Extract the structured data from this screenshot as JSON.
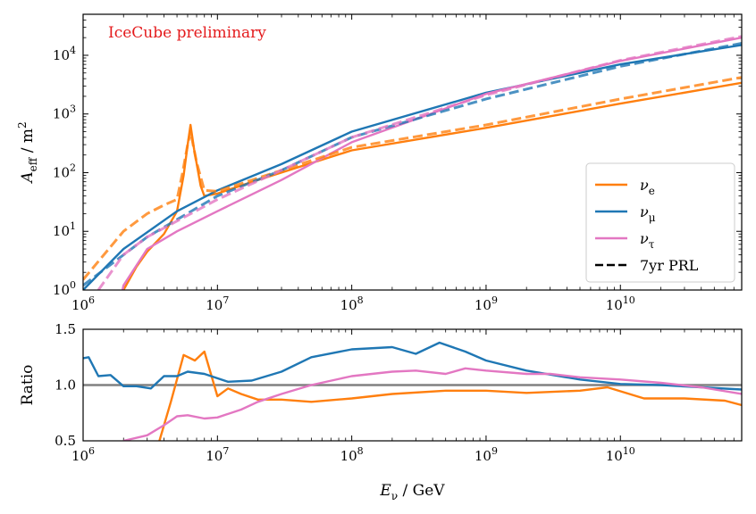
{
  "chart_data": [
    {
      "type": "line",
      "xscale": "log",
      "yscale": "log",
      "xlim": [
        1000000,
        80000000000
      ],
      "ylim": [
        1,
        50000
      ],
      "xticks": [
        "10^6",
        "10^7",
        "10^8",
        "10^9",
        "10^10"
      ],
      "yticks": [
        "10^0",
        "10^1",
        "10^2",
        "10^3",
        "10^4"
      ],
      "ylabel": "A_eff / m^2",
      "annotation": "IceCube preliminary",
      "legend": {
        "placement": "lower-right",
        "entries": [
          {
            "label": "ν_e",
            "color": "#ff7f0e",
            "style": "solid"
          },
          {
            "label": "ν_μ",
            "color": "#1f77b4",
            "style": "solid"
          },
          {
            "label": "ν_τ",
            "color": "#e377c2",
            "style": "solid"
          },
          {
            "label": "7yr PRL",
            "color": "#000000",
            "style": "dashed"
          }
        ]
      },
      "series": [
        {
          "name": "ν_e",
          "color": "#ff7f0e",
          "dash": false,
          "x": [
            1900000,
            2000000,
            2500000,
            3000000,
            4000000,
            5000000,
            5600000,
            6000000,
            6300000,
            6700000,
            7500000,
            8000000,
            10000000,
            20000000,
            100000000,
            1000000000,
            10000000000,
            80000000000
          ],
          "y": [
            0.8,
            1,
            2.5,
            4.5,
            9,
            22,
            90,
            300,
            650,
            250,
            60,
            40,
            44,
            75,
            240,
            580,
            1500,
            3400
          ]
        },
        {
          "name": "ν_μ",
          "color": "#1f77b4",
          "dash": false,
          "x": [
            1000000,
            2000000,
            5000000,
            10000000,
            30000000,
            100000000,
            1000000000,
            10000000000,
            80000000000
          ],
          "y": [
            1,
            5,
            22,
            50,
            140,
            500,
            2300,
            7000,
            15000
          ]
        },
        {
          "name": "ν_τ",
          "color": "#e377c2",
          "dash": false,
          "x": [
            1900000,
            2000000,
            3000000,
            5000000,
            10000000,
            30000000,
            100000000,
            1000000000,
            10000000000,
            80000000000
          ],
          "y": [
            0.7,
            1.2,
            5,
            10,
            22,
            75,
            330,
            2200,
            8000,
            20000
          ]
        },
        {
          "name": "ν_e 7yr PRL",
          "color": "#ff7f0e",
          "dash": true,
          "x": [
            1000000,
            2000000,
            3000000,
            4000000,
            5000000,
            5500000,
            6000000,
            6300000,
            7000000,
            8000000,
            10000000,
            100000000,
            1000000000,
            10000000000,
            80000000000
          ],
          "y": [
            1.5,
            10,
            20,
            28,
            35,
            100,
            300,
            500,
            150,
            50,
            48,
            270,
            650,
            1800,
            4200
          ]
        },
        {
          "name": "ν_μ 7yr PRL",
          "color": "#1f77b4",
          "dash": true,
          "x": [
            1000000,
            3000000,
            10000000,
            30000000,
            100000000,
            1000000000,
            10000000000,
            80000000000
          ],
          "y": [
            1.2,
            8,
            40,
            110,
            400,
            1800,
            6500,
            16000
          ]
        },
        {
          "name": "ν_τ 7yr PRL",
          "color": "#e377c2",
          "dash": true,
          "x": [
            1300000,
            2000000,
            3000000,
            5000000,
            10000000,
            30000000,
            100000000,
            1000000000,
            10000000000,
            80000000000
          ],
          "y": [
            1,
            4,
            8,
            15,
            35,
            110,
            400,
            2100,
            8200,
            21000
          ]
        }
      ]
    },
    {
      "type": "line",
      "xscale": "log",
      "yscale": "linear",
      "xlim": [
        1000000,
        80000000000
      ],
      "ylim": [
        0.5,
        1.5
      ],
      "xticks": [
        "10^6",
        "10^7",
        "10^8",
        "10^9",
        "10^10"
      ],
      "yticks": [
        "0.5",
        "1.0",
        "1.5"
      ],
      "xlabel": "E_ν / GeV",
      "ylabel": "Ratio",
      "reference_line": {
        "y": 1.0,
        "color": "#808080"
      },
      "series": [
        {
          "name": "ν_e",
          "color": "#ff7f0e",
          "x": [
            3700000,
            4500000,
            5600000,
            6800000,
            8000000,
            10000000,
            12000000,
            15000000,
            20000000,
            30000000,
            50000000,
            100000000,
            200000000,
            500000000,
            1000000000,
            2000000000,
            5000000000,
            8000000000,
            15000000000,
            30000000000,
            60000000000,
            80000000000
          ],
          "y": [
            0.5,
            0.85,
            1.27,
            1.22,
            1.3,
            0.9,
            0.97,
            0.92,
            0.87,
            0.87,
            0.85,
            0.88,
            0.92,
            0.95,
            0.95,
            0.93,
            0.95,
            0.98,
            0.88,
            0.88,
            0.86,
            0.82
          ]
        },
        {
          "name": "ν_μ",
          "color": "#1f77b4",
          "x": [
            1000000,
            1100000,
            1300000,
            1600000,
            2000000,
            2500000,
            3200000,
            4000000,
            5000000,
            6000000,
            8000000,
            12000000,
            18000000,
            30000000,
            50000000,
            100000000,
            200000000,
            300000000,
            450000000,
            700000000,
            1000000000,
            2000000000,
            5000000000,
            10000000000,
            20000000000,
            40000000000,
            80000000000
          ],
          "y": [
            1.24,
            1.25,
            1.08,
            1.09,
            0.99,
            0.99,
            0.97,
            1.08,
            1.08,
            1.12,
            1.1,
            1.03,
            1.04,
            1.12,
            1.25,
            1.32,
            1.34,
            1.28,
            1.38,
            1.3,
            1.22,
            1.13,
            1.05,
            1.01,
            1.0,
            0.98,
            0.96
          ]
        },
        {
          "name": "ν_τ",
          "color": "#e377c2",
          "x": [
            2000000,
            3000000,
            4000000,
            5000000,
            6000000,
            8000000,
            10000000,
            15000000,
            20000000,
            30000000,
            50000000,
            100000000,
            200000000,
            300000000,
            500000000,
            700000000,
            1000000000,
            2000000000,
            3000000000,
            5000000000,
            10000000000,
            20000000000,
            40000000000,
            80000000000
          ],
          "y": [
            0.5,
            0.55,
            0.64,
            0.72,
            0.73,
            0.7,
            0.71,
            0.78,
            0.85,
            0.92,
            1.0,
            1.08,
            1.12,
            1.13,
            1.1,
            1.15,
            1.13,
            1.1,
            1.1,
            1.07,
            1.05,
            1.02,
            0.98,
            0.92
          ]
        }
      ]
    }
  ]
}
